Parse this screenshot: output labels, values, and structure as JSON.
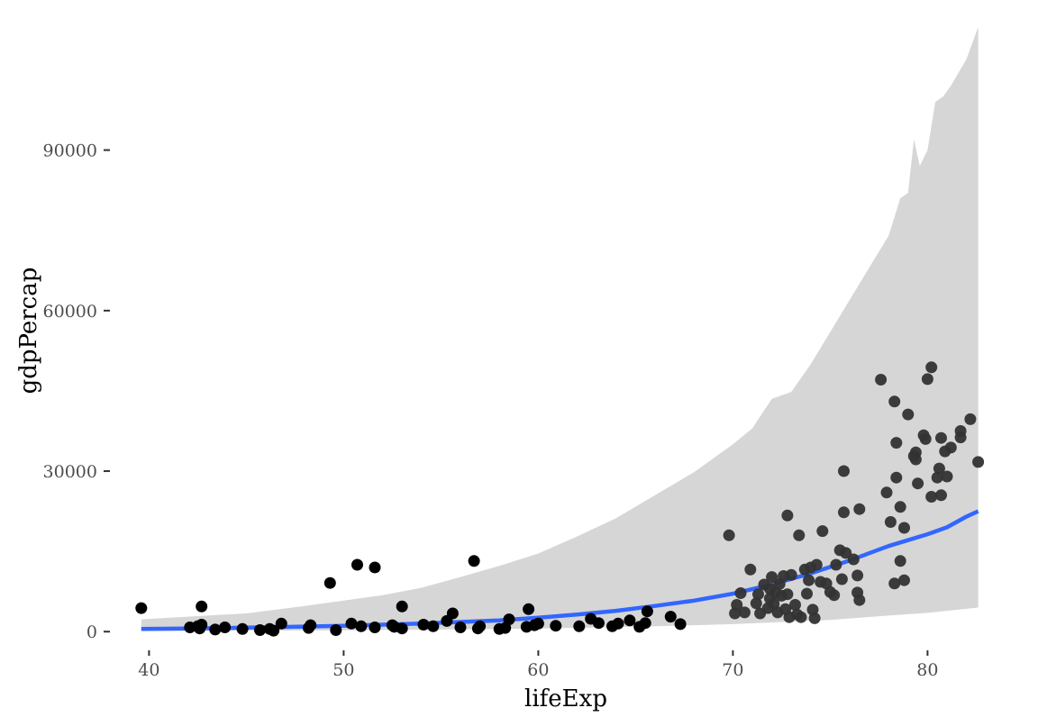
{
  "chart_data": {
    "type": "scatter",
    "xlabel": "lifeExp",
    "ylabel": "gdpPercap",
    "xlim": [
      38.5,
      83.5
    ],
    "ylim": [
      -4000,
      113000
    ],
    "x_ticks": [
      40,
      50,
      60,
      70,
      80
    ],
    "y_ticks": [
      0,
      30000,
      60000,
      90000
    ],
    "grid": false,
    "legend": "none",
    "colors": {
      "points": "#333333",
      "smooth_line": "#3366ff",
      "band": "#d6d6d6",
      "axis_tick": "#333333"
    },
    "points": [
      [
        39.6,
        4400
      ],
      [
        42.1,
        800
      ],
      [
        42.5,
        1000
      ],
      [
        42.7,
        1300
      ],
      [
        42.7,
        4700
      ],
      [
        42.6,
        600
      ],
      [
        43.4,
        400
      ],
      [
        43.9,
        800
      ],
      [
        44.8,
        500
      ],
      [
        45.7,
        300
      ],
      [
        46.2,
        500
      ],
      [
        46.4,
        200
      ],
      [
        46.8,
        1500
      ],
      [
        48.2,
        700
      ],
      [
        48.3,
        1200
      ],
      [
        49.3,
        9100
      ],
      [
        49.6,
        300
      ],
      [
        50.4,
        1500
      ],
      [
        50.7,
        12500
      ],
      [
        50.9,
        1000
      ],
      [
        51.6,
        12000
      ],
      [
        51.6,
        800
      ],
      [
        52.5,
        1200
      ],
      [
        52.6,
        900
      ],
      [
        53.0,
        4700
      ],
      [
        53.0,
        600
      ],
      [
        54.1,
        1300
      ],
      [
        54.6,
        1000
      ],
      [
        55.3,
        2000
      ],
      [
        55.6,
        3400
      ],
      [
        56.0,
        800
      ],
      [
        56.7,
        13200
      ],
      [
        56.9,
        600
      ],
      [
        57.0,
        1000
      ],
      [
        58.0,
        500
      ],
      [
        58.3,
        700
      ],
      [
        58.5,
        2300
      ],
      [
        59.4,
        900
      ],
      [
        59.5,
        4200
      ],
      [
        59.8,
        1200
      ],
      [
        60.0,
        1500
      ],
      [
        60.9,
        1100
      ],
      [
        62.1,
        1000
      ],
      [
        62.7,
        2400
      ],
      [
        63.1,
        1600
      ],
      [
        63.8,
        1000
      ],
      [
        64.1,
        1500
      ],
      [
        64.7,
        2100
      ],
      [
        65.2,
        900
      ],
      [
        65.5,
        1600
      ],
      [
        65.6,
        3800
      ],
      [
        66.8,
        2800
      ],
      [
        67.3,
        1400
      ],
      [
        69.8,
        18000
      ],
      [
        70.1,
        3400
      ],
      [
        70.2,
        5000
      ],
      [
        70.4,
        7200
      ],
      [
        70.6,
        3600
      ],
      [
        70.9,
        11600
      ],
      [
        71.2,
        5300
      ],
      [
        71.3,
        7000
      ],
      [
        71.4,
        3400
      ],
      [
        71.6,
        8800
      ],
      [
        71.8,
        4400
      ],
      [
        71.9,
        6200
      ],
      [
        71.9,
        8000
      ],
      [
        72.0,
        10200
      ],
      [
        72.1,
        5200
      ],
      [
        72.2,
        7300
      ],
      [
        72.3,
        3600
      ],
      [
        72.4,
        8900
      ],
      [
        72.5,
        6700
      ],
      [
        72.6,
        10400
      ],
      [
        72.7,
        4200
      ],
      [
        72.8,
        21700
      ],
      [
        72.8,
        7000
      ],
      [
        72.9,
        2700
      ],
      [
        73.0,
        10600
      ],
      [
        73.2,
        5000
      ],
      [
        73.3,
        3200
      ],
      [
        73.4,
        18000
      ],
      [
        73.5,
        2700
      ],
      [
        73.7,
        11600
      ],
      [
        73.8,
        7100
      ],
      [
        73.9,
        9600
      ],
      [
        74.0,
        12000
      ],
      [
        74.1,
        4100
      ],
      [
        74.2,
        2500
      ],
      [
        74.3,
        12500
      ],
      [
        74.5,
        9300
      ],
      [
        74.6,
        18800
      ],
      [
        74.8,
        9000
      ],
      [
        75.0,
        7400
      ],
      [
        75.2,
        6800
      ],
      [
        75.3,
        12500
      ],
      [
        75.5,
        15200
      ],
      [
        75.6,
        9800
      ],
      [
        75.7,
        30000
      ],
      [
        75.7,
        22300
      ],
      [
        75.8,
        14700
      ],
      [
        76.2,
        13500
      ],
      [
        76.4,
        10500
      ],
      [
        76.4,
        7300
      ],
      [
        76.5,
        5900
      ],
      [
        76.5,
        22900
      ],
      [
        77.6,
        47100
      ],
      [
        77.9,
        26000
      ],
      [
        78.1,
        20500
      ],
      [
        78.3,
        43000
      ],
      [
        78.3,
        9000
      ],
      [
        78.4,
        35300
      ],
      [
        78.4,
        28800
      ],
      [
        78.6,
        13200
      ],
      [
        78.6,
        23300
      ],
      [
        78.8,
        19400
      ],
      [
        78.8,
        9600
      ],
      [
        79.0,
        40600
      ],
      [
        79.3,
        32800
      ],
      [
        79.4,
        33500
      ],
      [
        79.4,
        32200
      ],
      [
        79.5,
        27700
      ],
      [
        79.8,
        36700
      ],
      [
        79.9,
        36000
      ],
      [
        80.0,
        47200
      ],
      [
        80.2,
        49400
      ],
      [
        80.2,
        25200
      ],
      [
        80.5,
        28800
      ],
      [
        80.6,
        30500
      ],
      [
        80.7,
        36200
      ],
      [
        80.7,
        25500
      ],
      [
        80.9,
        33700
      ],
      [
        81.0,
        29000
      ],
      [
        81.2,
        34400
      ],
      [
        81.7,
        37500
      ],
      [
        81.7,
        36300
      ],
      [
        82.2,
        39700
      ],
      [
        82.6,
        31700
      ]
    ],
    "smooth_line": [
      [
        39.6,
        500
      ],
      [
        42,
        600
      ],
      [
        45,
        750
      ],
      [
        48,
        950
      ],
      [
        50,
        1100
      ],
      [
        52,
        1300
      ],
      [
        54,
        1500
      ],
      [
        56,
        1800
      ],
      [
        58,
        2100
      ],
      [
        60,
        2600
      ],
      [
        62,
        3200
      ],
      [
        64,
        3900
      ],
      [
        66,
        4800
      ],
      [
        68,
        5800
      ],
      [
        70,
        7100
      ],
      [
        72,
        8800
      ],
      [
        74,
        10900
      ],
      [
        76,
        13300
      ],
      [
        78,
        16000
      ],
      [
        80,
        18200
      ],
      [
        81,
        19500
      ],
      [
        82,
        21500
      ],
      [
        82.6,
        22500
      ]
    ],
    "band_upper": [
      [
        39.6,
        2300
      ],
      [
        42,
        2800
      ],
      [
        45,
        3400
      ],
      [
        48,
        4800
      ],
      [
        50,
        5800
      ],
      [
        52,
        6800
      ],
      [
        54,
        8200
      ],
      [
        56,
        10200
      ],
      [
        58,
        12300
      ],
      [
        60,
        14600
      ],
      [
        62,
        17800
      ],
      [
        64,
        21200
      ],
      [
        66,
        25500
      ],
      [
        68,
        29800
      ],
      [
        70,
        35000
      ],
      [
        71,
        38000
      ],
      [
        72,
        43500
      ],
      [
        73,
        44800
      ],
      [
        74,
        50000
      ],
      [
        75,
        56000
      ],
      [
        76,
        62000
      ],
      [
        77,
        68000
      ],
      [
        78,
        74000
      ],
      [
        78.6,
        81000
      ],
      [
        79,
        82000
      ],
      [
        79.3,
        92000
      ],
      [
        79.6,
        87000
      ],
      [
        80,
        90000
      ],
      [
        80.4,
        99000
      ],
      [
        80.8,
        100000
      ],
      [
        81.2,
        102000
      ],
      [
        82,
        107000
      ],
      [
        82.6,
        113000
      ]
    ],
    "band_lower": [
      [
        39.6,
        100
      ],
      [
        45,
        150
      ],
      [
        50,
        250
      ],
      [
        55,
        400
      ],
      [
        60,
        600
      ],
      [
        65,
        900
      ],
      [
        70,
        1400
      ],
      [
        75,
        2200
      ],
      [
        78,
        3000
      ],
      [
        80,
        3500
      ],
      [
        82.6,
        4500
      ]
    ]
  }
}
